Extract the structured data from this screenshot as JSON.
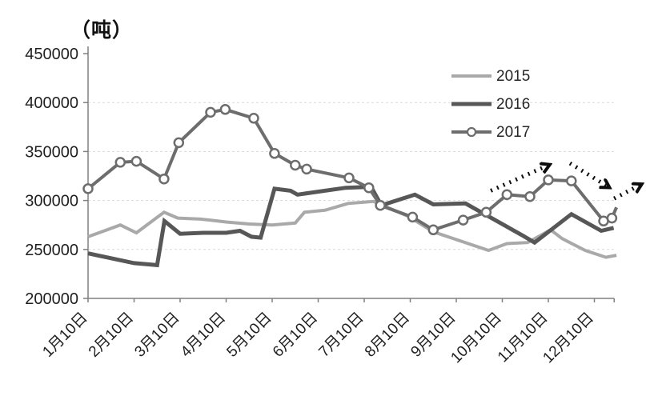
{
  "chart_data": {
    "type": "line",
    "unit_label": "（吨）",
    "x_unit_note": "x is in month units: 1.0 = 1月10日, +0.5 = half month later",
    "x_tick_labels": [
      "1月10日",
      "2月10日",
      "3月10日",
      "4月10日",
      "5月10日",
      "6月10日",
      "7月10日",
      "8月10日",
      "9月10日",
      "10月10日",
      "11月10日",
      "12月10日"
    ],
    "x_axis": {
      "month_start": 1,
      "month_end": 12.43
    },
    "y_axis": {
      "min": 200000,
      "max": 450000,
      "tick_step": 50000,
      "ticks": [
        200000,
        250000,
        300000,
        350000,
        400000,
        450000
      ],
      "gridline_ticks": [
        250000,
        300000,
        350000,
        400000
      ]
    },
    "legend": {
      "entries": [
        "2015",
        "2016",
        "2017"
      ],
      "position": "upper-right"
    },
    "grid": "horizontal-dashed",
    "colors": {
      "s2015": "#a9a9a9",
      "s2016": "#575757",
      "s2017": "#6d6d6d",
      "axis": "#808080",
      "gridline": "#d9d9d9",
      "text": "#1f1f1f",
      "arrow": "#0d0d0d"
    },
    "series": [
      {
        "name": "2015",
        "color_key": "s2015",
        "marker": "none",
        "width": 4,
        "points": [
          [
            1.0,
            263000
          ],
          [
            1.7,
            275000
          ],
          [
            2.05,
            267000
          ],
          [
            2.65,
            288000
          ],
          [
            2.95,
            282000
          ],
          [
            3.45,
            281000
          ],
          [
            3.65,
            280000
          ],
          [
            4.0,
            278000
          ],
          [
            4.5,
            276000
          ],
          [
            5.0,
            275000
          ],
          [
            5.5,
            277000
          ],
          [
            5.7,
            288000
          ],
          [
            6.15,
            290000
          ],
          [
            6.65,
            297000
          ],
          [
            7.2,
            299000
          ],
          [
            7.6,
            291000
          ],
          [
            7.95,
            284000
          ],
          [
            8.5,
            268000
          ],
          [
            9.7,
            249000
          ],
          [
            10.1,
            256000
          ],
          [
            10.55,
            257000
          ],
          [
            11.05,
            270000
          ],
          [
            11.3,
            261000
          ],
          [
            11.8,
            249000
          ],
          [
            12.25,
            242000
          ],
          [
            12.48,
            244000
          ]
        ]
      },
      {
        "name": "2016",
        "color_key": "s2016",
        "marker": "none",
        "width": 5,
        "points": [
          [
            1.0,
            246000
          ],
          [
            1.5,
            241000
          ],
          [
            2.0,
            236000
          ],
          [
            2.5,
            234000
          ],
          [
            2.66,
            279000
          ],
          [
            3.0,
            266000
          ],
          [
            3.5,
            267000
          ],
          [
            4.0,
            267000
          ],
          [
            4.3,
            269000
          ],
          [
            4.55,
            263000
          ],
          [
            4.75,
            262000
          ],
          [
            5.05,
            312000
          ],
          [
            5.4,
            310000
          ],
          [
            5.55,
            306000
          ],
          [
            6.6,
            313000
          ],
          [
            7.15,
            314000
          ],
          [
            7.37,
            295000
          ],
          [
            8.1,
            306000
          ],
          [
            8.5,
            296000
          ],
          [
            9.2,
            297000
          ],
          [
            10.45,
            264000
          ],
          [
            10.7,
            257000
          ],
          [
            11.5,
            286000
          ],
          [
            12.15,
            269000
          ],
          [
            12.42,
            272000
          ]
        ]
      },
      {
        "name": "2017",
        "color_key": "s2017",
        "marker": "circle",
        "width": 4,
        "marker_radius": 5.5,
        "points": [
          [
            1.0,
            312000
          ],
          [
            1.7,
            339000
          ],
          [
            2.05,
            340000
          ],
          [
            2.65,
            322000
          ],
          [
            2.97,
            359000
          ],
          [
            3.66,
            390000
          ],
          [
            3.98,
            393000
          ],
          [
            4.6,
            384000
          ],
          [
            5.05,
            348000
          ],
          [
            5.5,
            336000
          ],
          [
            5.75,
            332000
          ],
          [
            6.67,
            323000
          ],
          [
            7.1,
            313000
          ],
          [
            7.35,
            295000
          ],
          [
            8.05,
            283000
          ],
          [
            8.5,
            270000
          ],
          [
            9.15,
            280000
          ],
          [
            9.65,
            288000
          ],
          [
            10.1,
            306000
          ],
          [
            10.6,
            304000
          ],
          [
            11.0,
            321000
          ],
          [
            11.5,
            320000
          ],
          [
            12.2,
            279000
          ],
          [
            12.38,
            282000
          ]
        ],
        "tail_point_no_marker": [
          12.48,
          293000
        ]
      }
    ],
    "annotations": {
      "trend_arrows": [
        {
          "style": "dotted",
          "from": [
            9.75,
            310000
          ],
          "to": [
            11.0,
            336000
          ],
          "direction": "up-right"
        },
        {
          "style": "dotted",
          "from": [
            11.47,
            338000
          ],
          "to": [
            12.3,
            314000
          ],
          "direction": "down-right"
        },
        {
          "style": "dotted",
          "from": [
            12.43,
            302000
          ],
          "to": [
            13.0,
            316000
          ],
          "direction": "up-right"
        }
      ]
    }
  }
}
